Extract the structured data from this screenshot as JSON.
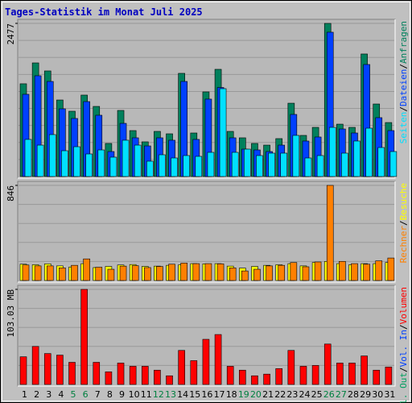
{
  "title": "Tages-Statistik im Monat Juli 2025",
  "legend_separator": "/",
  "chart_data": [
    {
      "type": "bar",
      "ylim": [
        0,
        2477
      ],
      "yticks": [
        2477
      ],
      "series": [
        {
          "name": "Anfragen",
          "color": "#00805c",
          "values": [
            1500,
            1838,
            1708,
            1238,
            1056,
            1317,
            1134,
            535,
            1069,
            743,
            561,
            730,
            691,
            1669,
            704,
            1369,
            1734,
            730,
            626,
            535,
            508,
            613,
            1186,
            665,
            795,
            2477,
            847,
            795,
            1982,
            1173,
            873
          ]
        },
        {
          "name": "Dateien",
          "color": "#0040ff",
          "values": [
            1330,
            1630,
            1538,
            1095,
            939,
            1212,
            991,
            404,
            860,
            626,
            495,
            626,
            587,
            1538,
            600,
            1252,
            1440,
            626,
            443,
            430,
            404,
            508,
            1004,
            574,
            639,
            2334,
            769,
            704,
            1812,
            952,
            743
          ]
        },
        {
          "name": "Seiten",
          "color": "#00e0ff",
          "values": [
            600,
            508,
            678,
            417,
            482,
            365,
            430,
            313,
            587,
            508,
            248,
            352,
            300,
            339,
            326,
            391,
            1421,
            391,
            443,
            339,
            378,
            378,
            665,
            300,
            339,
            795,
            378,
            574,
            782,
            469,
            404
          ]
        }
      ]
    },
    {
      "type": "bar",
      "ylim": [
        0,
        846
      ],
      "yticks": [
        846
      ],
      "series": [
        {
          "name": "Besuche",
          "color": "#ffff00",
          "values": [
            145,
            140,
            148,
            130,
            120,
            150,
            115,
            125,
            138,
            142,
            125,
            128,
            135,
            140,
            150,
            148,
            150,
            128,
            110,
            125,
            135,
            140,
            150,
            130,
            160,
            170,
            150,
            140,
            150,
            150,
            160
          ]
        },
        {
          "name": "Rechner",
          "color": "#ff8000",
          "values": [
            138,
            130,
            130,
            112,
            135,
            192,
            118,
            100,
            128,
            132,
            115,
            125,
            145,
            155,
            150,
            150,
            148,
            112,
            85,
            100,
            130,
            135,
            160,
            122,
            165,
            846,
            170,
            150,
            145,
            175,
            200
          ]
        }
      ]
    },
    {
      "type": "bar",
      "ylim": [
        0,
        103.03
      ],
      "yticks": [
        {
          "value": 103.03,
          "label": "103.03 MB"
        }
      ],
      "categories": [
        "1",
        "2",
        "3",
        "4",
        "5",
        "6",
        "7",
        "8",
        "9",
        "10",
        "11",
        "12",
        "13",
        "14",
        "15",
        "16",
        "17",
        "18",
        "19",
        "20",
        "21",
        "22",
        "23",
        "24",
        "25",
        "26",
        "27",
        "28",
        "29",
        "30",
        "31"
      ],
      "category_colors": [
        "#000",
        "#000",
        "#000",
        "#000",
        "#008040",
        "#008040",
        "#000",
        "#000",
        "#000",
        "#000",
        "#000",
        "#008040",
        "#008040",
        "#000",
        "#000",
        "#000",
        "#000",
        "#000",
        "#008040",
        "#008040",
        "#000",
        "#000",
        "#000",
        "#000",
        "#000",
        "#008040",
        "#008040",
        "#000",
        "#000",
        "#000",
        "#000"
      ],
      "series": [
        {
          "name": "Volumen",
          "color": "#ff0000",
          "values": [
            30.0,
            41.2,
            33.5,
            31.8,
            24.0,
            103.03,
            24.0,
            13.7,
            23.2,
            19.7,
            19.7,
            15.5,
            9.4,
            36.9,
            25.8,
            48.9,
            54.1,
            19.7,
            15.5,
            9.4,
            11.2,
            17.2,
            36.9,
            19.7,
            20.6,
            43.8,
            23.2,
            23.2,
            30.9,
            15.5,
            18.9
          ]
        },
        {
          "name": "Vol. In",
          "color": "#0040ff"
        },
        {
          "name": "Vol. Out",
          "color": "#00a060"
        }
      ]
    }
  ]
}
